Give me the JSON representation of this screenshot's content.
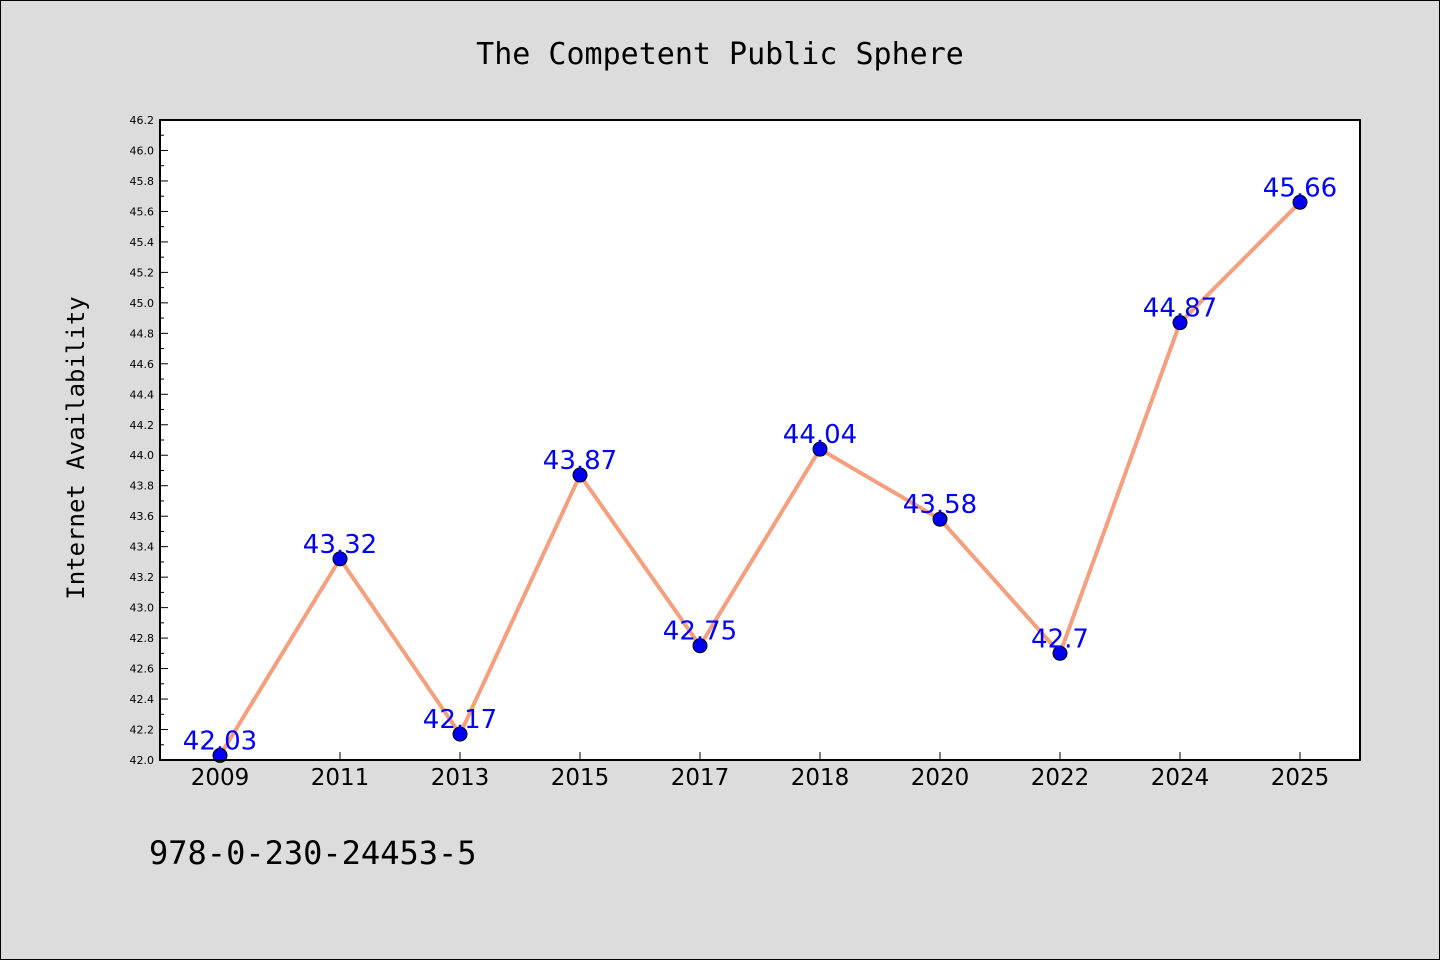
{
  "chart_data": {
    "type": "line",
    "title": "The Competent Public Sphere",
    "xlabel": "",
    "ylabel": "Internet Availability",
    "categories": [
      "2009",
      "2011",
      "2013",
      "2015",
      "2017",
      "2018",
      "2020",
      "2022",
      "2024",
      "2025"
    ],
    "series": [
      {
        "values": [
          42.03,
          43.32,
          42.17,
          43.87,
          42.75,
          44.04,
          43.58,
          42.7,
          44.87,
          45.66
        ],
        "data_labels": [
          "42.03",
          "43.32",
          "42.17",
          "43.87",
          "42.75",
          "44.04",
          "43.58",
          "42.7",
          "44.87",
          "45.66"
        ],
        "line_color": "#f4a07f",
        "marker_color": "#0000ee"
      }
    ],
    "ylim": [
      42.0,
      46.2
    ],
    "yticks": [
      "42.0",
      "42.2",
      "42.4",
      "42.6",
      "42.8",
      "43.0",
      "43.2",
      "43.4",
      "43.6",
      "43.8",
      "44.0",
      "44.2",
      "44.4",
      "44.6",
      "44.8",
      "45.0",
      "45.2",
      "45.4",
      "45.6",
      "45.8",
      "46.0",
      "46.2"
    ],
    "grid": false,
    "legend": "none",
    "label_color": "#0000ff",
    "background": "#dcdcdc",
    "plot_background": "#ffffff"
  },
  "footer": {
    "isbn": "978-0-230-24453-5"
  }
}
